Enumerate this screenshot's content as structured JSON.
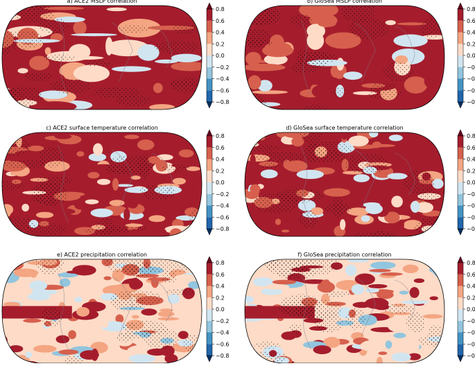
{
  "panels": [
    {
      "title": "a) ACE2 MSLP correlation"
    },
    {
      "title": "b) GloSea MSLP correlation"
    },
    {
      "title": "c) ACE2 surface temperature correlation"
    },
    {
      "title": "d) GloSea surface temperature correlation"
    },
    {
      "title": "e) ACE2 precipitation correlation"
    },
    {
      "title": "f) GloSea precipitation correlation"
    }
  ],
  "colorbar": {
    "ticks": [
      {
        "value": -0.8,
        "label": "−0.8"
      },
      {
        "value": -0.6,
        "label": "−0.6"
      },
      {
        "value": -0.4,
        "label": "−0.4"
      },
      {
        "value": -0.2,
        "label": "−0.2"
      },
      {
        "value": 0,
        "label": "0.0"
      },
      0.2,
      0.4,
      0.6,
      0.8
    ],
    "colors": [
      "#053061",
      "#2166ac",
      "#4393c3",
      "#92c5de",
      "#d1e5f0",
      "#fddbc7",
      "#f4a582",
      "#d6604d",
      "#a51d2d",
      "#67001f"
    ]
  }
}
